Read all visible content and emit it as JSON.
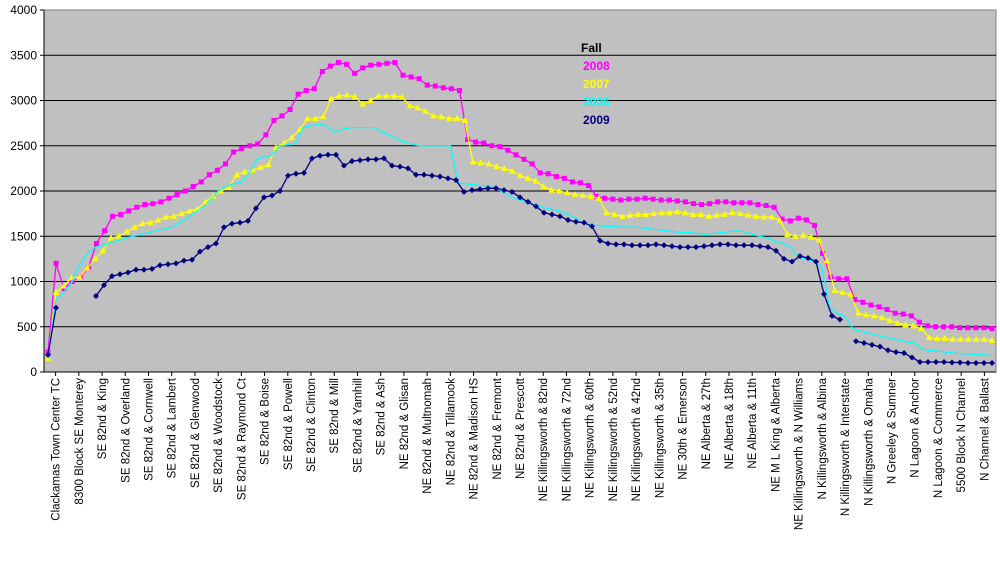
{
  "chart_data": {
    "type": "line",
    "title": "",
    "xlabel": "",
    "ylabel": "",
    "ylim": [
      0,
      4000
    ],
    "yticks": [
      0,
      500,
      1000,
      1500,
      2000,
      2500,
      3000,
      3500,
      4000
    ],
    "grid": true,
    "legend_position": "top-center",
    "legend_title": "Fall",
    "x_labels": [
      "Clackamas Town Center TC",
      "8300 Block SE Monterey",
      "SE 82nd & King",
      "SE 82nd & Overland",
      "SE 82nd & Cornwell",
      "SE 82nd & Lambert",
      "SE 82nd & Glenwood",
      "SE 82nd & Woodstock",
      "SE 82nd & Raymond Ct",
      "SE 82nd & Boise",
      "SE 82nd & Powell",
      "SE 82nd & Clinton",
      "SE 82nd & Mill",
      "SE 82nd & Yamhill",
      "SE 82nd & Ash",
      "NE 82nd & Glisan",
      "NE 82nd & Multnomah",
      "NE 82nd & Tillamook",
      "NE 82nd & Madison HS",
      "NE 82nd & Fremont",
      "NE 82nd & Prescott",
      "NE Killingsworth & 82nd",
      "NE Killingsworth & 72nd",
      "NE Killingsworth & 60th",
      "NE Killingsworth & 52nd",
      "NE Killingsworth & 42nd",
      "NE Killingsworth & 35th",
      "NE 30th & Emerson",
      "NE Alberta & 27th",
      "NE Alberta & 18th",
      "NE Alberta & 11th",
      "NE M L King & Alberta",
      "NE Killingsworth & N Williams",
      "N Killingsworth & Albina",
      "N Killingsworth & Interstate",
      "N Killingsworth & Omaha",
      "N Greeley & Sumner",
      "N Lagoon & Anchor",
      "N Lagoon & Commerce",
      "5500 Block N Channel",
      "N Channel & Ballast"
    ],
    "series": [
      {
        "name": "2008",
        "color": "#ff00ff",
        "marker": "square",
        "values": [
          220,
          1200,
          920,
          1000,
          1050,
          1150,
          1420,
          1560,
          1720,
          1740,
          1780,
          1820,
          1850,
          1860,
          1880,
          1920,
          1960,
          2000,
          2050,
          2100,
          2180,
          2230,
          2300,
          2430,
          2470,
          2500,
          2520,
          2620,
          2780,
          2830,
          2900,
          3070,
          3110,
          3130,
          3320,
          3380,
          3420,
          3400,
          3300,
          3360,
          3390,
          3400,
          3410,
          3420,
          3280,
          3260,
          3240,
          3170,
          3160,
          3140,
          3130,
          3110,
          2570,
          2540,
          2530,
          2500,
          2490,
          2450,
          2400,
          2350,
          2300,
          2200,
          2190,
          2160,
          2140,
          2100,
          2090,
          2060,
          1940,
          1920,
          1910,
          1900,
          1910,
          1910,
          1920,
          1910,
          1900,
          1900,
          1890,
          1880,
          1860,
          1850,
          1860,
          1880,
          1880,
          1870,
          1870,
          1870,
          1850,
          1840,
          1820,
          1690,
          1670,
          1700,
          1680,
          1620,
          1310,
          1050,
          1030,
          1030,
          800,
          770,
          740,
          720,
          690,
          650,
          640,
          620,
          550,
          510,
          500,
          500,
          500,
          490,
          490,
          490,
          490,
          480
        ]
      },
      {
        "name": "2007",
        "color": "#ffff00",
        "marker": "triangle",
        "values": [
          150,
          880,
          950,
          1040,
          1050,
          1150,
          1250,
          1340,
          1480,
          1500,
          1550,
          1600,
          1640,
          1650,
          1680,
          1710,
          1720,
          1750,
          1780,
          1800,
          1880,
          1940,
          2000,
          2040,
          2180,
          2210,
          2230,
          2260,
          2290,
          2480,
          2530,
          2590,
          2680,
          2800,
          2800,
          2820,
          3020,
          3050,
          3060,
          3040,
          2960,
          3000,
          3050,
          3050,
          3050,
          3040,
          2940,
          2920,
          2880,
          2830,
          2820,
          2800,
          2800,
          2780,
          2320,
          2310,
          2300,
          2270,
          2250,
          2220,
          2170,
          2140,
          2110,
          2050,
          2010,
          2000,
          1980,
          1960,
          1950,
          1940,
          1920,
          1760,
          1740,
          1720,
          1730,
          1740,
          1740,
          1750,
          1760,
          1760,
          1770,
          1760,
          1740,
          1740,
          1720,
          1730,
          1740,
          1760,
          1750,
          1730,
          1720,
          1710,
          1710,
          1680,
          1520,
          1500,
          1510,
          1490,
          1460,
          1230,
          900,
          880,
          860,
          650,
          630,
          620,
          600,
          570,
          540,
          520,
          510,
          480,
          380,
          370,
          370,
          360,
          360,
          360,
          360,
          360,
          350
        ]
      },
      {
        "name": "2006",
        "color": "#00ffff",
        "marker": "line",
        "values": [
          150,
          790,
          880,
          980,
          1170,
          1300,
          1370,
          1400,
          1430,
          1450,
          1480,
          1500,
          1520,
          1540,
          1560,
          1580,
          1600,
          1650,
          1700,
          1760,
          1820,
          1900,
          2000,
          2050,
          2080,
          2100,
          2200,
          2350,
          2380,
          2400,
          2500,
          2510,
          2530,
          2700,
          2720,
          2740,
          2720,
          2650,
          2680,
          2700,
          2700,
          2700,
          2700,
          2660,
          2620,
          2580,
          2540,
          2520,
          2500,
          2500,
          2500,
          2500,
          2500,
          2090,
          2080,
          2070,
          2060,
          2050,
          2030,
          1980,
          1930,
          1900,
          1870,
          1850,
          1820,
          1800,
          1780,
          1750,
          1710,
          1650,
          1630,
          1620,
          1610,
          1610,
          1600,
          1600,
          1600,
          1590,
          1580,
          1570,
          1560,
          1550,
          1540,
          1540,
          1530,
          1520,
          1530,
          1540,
          1550,
          1560,
          1550,
          1520,
          1500,
          1480,
          1440,
          1420,
          1380,
          1270,
          1250,
          1220,
          1150,
          720,
          650,
          620,
          480,
          450,
          430,
          410,
          390,
          370,
          350,
          330,
          320,
          250,
          240,
          230,
          220,
          210,
          200,
          200,
          190,
          190,
          180
        ]
      },
      {
        "name": "2009",
        "color": "#000080",
        "marker": "diamond",
        "values": [
          190,
          710,
          null,
          null,
          null,
          null,
          840,
          960,
          1060,
          1080,
          1100,
          1130,
          1130,
          1140,
          1180,
          1190,
          1200,
          1230,
          1240,
          1330,
          1380,
          1420,
          1600,
          1640,
          1650,
          1670,
          1810,
          1930,
          1950,
          2000,
          2170,
          2190,
          2200,
          2360,
          2390,
          2400,
          2400,
          2280,
          2330,
          2340,
          2350,
          2350,
          2360,
          2280,
          2270,
          2250,
          2180,
          2180,
          2170,
          2160,
          2140,
          2120,
          1990,
          2010,
          2020,
          2030,
          2030,
          2010,
          1990,
          1930,
          1880,
          1830,
          1760,
          1740,
          1720,
          1680,
          1660,
          1650,
          1610,
          1450,
          1420,
          1410,
          1410,
          1400,
          1400,
          1400,
          1410,
          1400,
          1390,
          1380,
          1380,
          1380,
          1390,
          1400,
          1410,
          1410,
          1400,
          1400,
          1400,
          1390,
          1380,
          1340,
          1250,
          1220,
          1280,
          1260,
          1220,
          860,
          620,
          580,
          null,
          340,
          320,
          300,
          280,
          240,
          220,
          210,
          160,
          110,
          110,
          110,
          110,
          105,
          105,
          100,
          100,
          100,
          100
        ]
      }
    ]
  }
}
